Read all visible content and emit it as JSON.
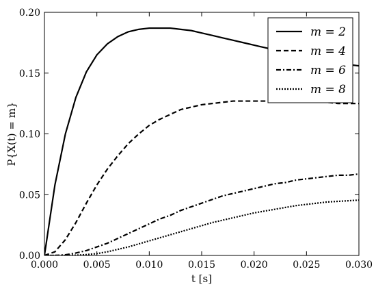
{
  "chart_data": {
    "type": "line",
    "xlabel": "t [s]",
    "ylabel": "P{X(t) = m}",
    "xlim": [
      0.0,
      0.03
    ],
    "ylim": [
      0.0,
      0.2
    ],
    "xticks": [
      0.0,
      0.005,
      0.01,
      0.015,
      0.02,
      0.025,
      0.03
    ],
    "xtick_labels": [
      "0.000",
      "0.005",
      "0.010",
      "0.015",
      "0.020",
      "0.025",
      "0.030"
    ],
    "yticks": [
      0.0,
      0.05,
      0.1,
      0.15,
      0.2
    ],
    "ytick_labels": [
      "0.00",
      "0.05",
      "0.10",
      "0.15",
      "0.20"
    ],
    "grid": false,
    "legend": {
      "position": "top-right"
    },
    "x": [
      0.0,
      0.001,
      0.002,
      0.003,
      0.004,
      0.005,
      0.006,
      0.007,
      0.008,
      0.009,
      0.01,
      0.011,
      0.012,
      0.013,
      0.014,
      0.015,
      0.016,
      0.017,
      0.018,
      0.019,
      0.02,
      0.021,
      0.022,
      0.023,
      0.024,
      0.025,
      0.026,
      0.027,
      0.028,
      0.029,
      0.03
    ],
    "series": [
      {
        "name": "m = 2",
        "style": "solid",
        "values": [
          0.0,
          0.058,
          0.1,
          0.13,
          0.151,
          0.165,
          0.174,
          0.18,
          0.184,
          0.186,
          0.187,
          0.187,
          0.187,
          0.186,
          0.185,
          0.183,
          0.181,
          0.179,
          0.177,
          0.175,
          0.173,
          0.171,
          0.169,
          0.167,
          0.165,
          0.163,
          0.161,
          0.16,
          0.158,
          0.157,
          0.156
        ]
      },
      {
        "name": "m = 4",
        "style": "dashed",
        "values": [
          0.0,
          0.003,
          0.013,
          0.027,
          0.043,
          0.058,
          0.071,
          0.082,
          0.092,
          0.1,
          0.107,
          0.112,
          0.116,
          0.12,
          0.122,
          0.124,
          0.125,
          0.126,
          0.127,
          0.127,
          0.127,
          0.127,
          0.127,
          0.127,
          0.127,
          0.126,
          0.126,
          0.126,
          0.125,
          0.125,
          0.125
        ]
      },
      {
        "name": "m = 6",
        "style": "dashdot",
        "values": [
          0.0,
          0.0,
          0.0005,
          0.002,
          0.004,
          0.007,
          0.01,
          0.014,
          0.018,
          0.022,
          0.026,
          0.03,
          0.033,
          0.037,
          0.04,
          0.043,
          0.046,
          0.049,
          0.051,
          0.053,
          0.055,
          0.057,
          0.059,
          0.06,
          0.062,
          0.063,
          0.064,
          0.065,
          0.066,
          0.066,
          0.067
        ]
      },
      {
        "name": "m = 8",
        "style": "dotted",
        "values": [
          0.0,
          0.0,
          0.0,
          0.0002,
          0.0007,
          0.0015,
          0.003,
          0.005,
          0.007,
          0.0095,
          0.012,
          0.0145,
          0.017,
          0.0195,
          0.022,
          0.0245,
          0.027,
          0.029,
          0.031,
          0.033,
          0.035,
          0.0365,
          0.038,
          0.0395,
          0.041,
          0.042,
          0.043,
          0.044,
          0.0445,
          0.045,
          0.0455
        ]
      }
    ]
  }
}
